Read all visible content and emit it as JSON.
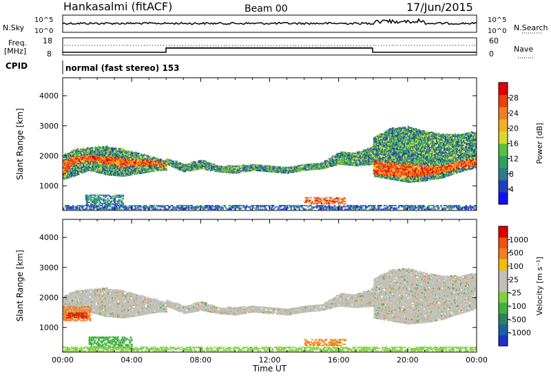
{
  "header": {
    "station": "Hankasalmi (fitACF)",
    "beam": "Beam 00",
    "date": "17/Jun/2015"
  },
  "noise_panel": {
    "left_label": "N.Sky",
    "right_label": "N.Search",
    "left_ticks": [
      "10^5",
      "10^0"
    ],
    "right_ticks": [
      "10^5",
      "10^0"
    ]
  },
  "freq_panel": {
    "left_label_1": "Freq.",
    "left_label_2": "[MHz]",
    "right_label": "Nave",
    "left_ticks": [
      "18",
      "8"
    ],
    "right_ticks": [
      "60",
      "0"
    ]
  },
  "cpid": {
    "label": "CPID",
    "text": "normal (fast stereo) 153"
  },
  "chart_data": [
    {
      "type": "heatmap",
      "name": "power",
      "ylabel": "Slant Range [km]",
      "xlabel": "",
      "xlim": [
        "00:00",
        "24:00"
      ],
      "ylim": [
        180,
        4600
      ],
      "ytick_values": [
        1000,
        2000,
        3000,
        4000
      ],
      "ytick_labels": [
        "1000",
        "2000",
        "3000",
        "4000"
      ],
      "colorbar": {
        "label": "Power [dB]",
        "ticks": [
          "4",
          "8",
          "12",
          "16",
          "20",
          "24",
          "28"
        ],
        "colors": [
          "#1010ff",
          "#2040c0",
          "#2e7a8a",
          "#30a060",
          "#58c040",
          "#d8d830",
          "#f0b020",
          "#f08020",
          "#f04010",
          "#e00000"
        ]
      },
      "bands": [
        {
          "t": [
            0,
            0.6,
            1.5,
            2.5,
            3.5,
            4.5,
            5.5,
            6
          ],
          "lo": [
            1200,
            1300,
            1500,
            1350,
            1300,
            1400,
            1500,
            1500
          ],
          "hi": [
            2000,
            2200,
            2250,
            2300,
            2200,
            2050,
            1900,
            1800
          ],
          "core_lo": [
            1300,
            1700,
            1800,
            1700,
            1600,
            1650,
            1650,
            1600
          ],
          "core_hi": [
            1800,
            1950,
            2000,
            1950,
            1900,
            1850,
            1800,
            1700
          ]
        },
        {
          "t": [
            6,
            7,
            8,
            9,
            10,
            11,
            12,
            13,
            14,
            15,
            16,
            17,
            18
          ],
          "lo": [
            1700,
            1450,
            1550,
            1450,
            1400,
            1500,
            1450,
            1400,
            1500,
            1550,
            1700,
            1650,
            1700
          ],
          "hi": [
            1900,
            1700,
            1850,
            1650,
            1650,
            1700,
            1650,
            1600,
            1700,
            1750,
            2100,
            2100,
            2300
          ],
          "core_lo": [],
          "core_hi": []
        },
        {
          "t": [
            18,
            19,
            20,
            21,
            22,
            23,
            24
          ],
          "lo": [
            1300,
            1200,
            1100,
            1150,
            1250,
            1450,
            1600
          ],
          "hi": [
            2600,
            2900,
            2950,
            2800,
            2700,
            2700,
            2800
          ],
          "core_lo": [
            1350,
            1300,
            1250,
            1300,
            1400,
            1550,
            1650
          ],
          "core_hi": [
            1800,
            1750,
            1700,
            1650,
            1650,
            1800,
            1900
          ]
        }
      ],
      "patches": [
        {
          "t0": 14.0,
          "t1": 16.4,
          "r0": 380,
          "r1": 620,
          "level": 8
        },
        {
          "t0": 0.0,
          "t1": 24.0,
          "r0": 200,
          "r1": 360,
          "level": 2
        },
        {
          "t0": 1.3,
          "t1": 3.5,
          "r0": 350,
          "r1": 700,
          "level": 3
        }
      ]
    },
    {
      "type": "heatmap",
      "name": "velocity",
      "ylabel": "Slant Range [km]",
      "xlabel": "Time UT",
      "xlim": [
        "00:00",
        "24:00"
      ],
      "ylim": [
        180,
        4600
      ],
      "ytick_values": [
        1000,
        2000,
        3000,
        4000
      ],
      "ytick_labels": [
        "1000",
        "2000",
        "3000",
        "4000"
      ],
      "xtick_labels": [
        "00:00",
        "04:00",
        "08:00",
        "12:00",
        "16:00",
        "20:00",
        "00:00"
      ],
      "colorbar": {
        "label": "Velocity [m s⁻¹]",
        "ticks": [
          "1000",
          "500",
          "100",
          "25",
          "-25",
          "-100",
          "-500",
          "-1000"
        ],
        "colors": [
          "#1e30c8",
          "#1860a8",
          "#2e8060",
          "#40b040",
          "#80d040",
          "#c0c0b8",
          "#c0c0b8",
          "#f0c000",
          "#f08020",
          "#f05010",
          "#e00000"
        ]
      },
      "patches": [
        {
          "t0": 14.0,
          "t1": 16.4,
          "r0": 380,
          "r1": 620,
          "color": "#f08010"
        },
        {
          "t0": 0.0,
          "t1": 1.6,
          "r0": 1200,
          "r1": 1700,
          "color": "#f08020"
        },
        {
          "t0": 0.2,
          "t1": 1.4,
          "r0": 1300,
          "r1": 1500,
          "color": "#e02000"
        },
        {
          "t0": 1.5,
          "t1": 4.0,
          "r0": 300,
          "r1": 700,
          "color": "#40b040"
        },
        {
          "t0": 0.0,
          "t1": 24.0,
          "r0": 200,
          "r1": 350,
          "color": "#80d040"
        }
      ]
    }
  ]
}
